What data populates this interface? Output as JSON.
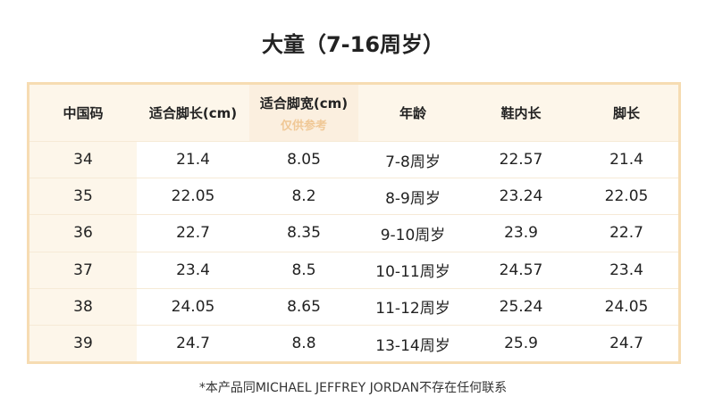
{
  "title": "大童（7-16周岁）",
  "table": {
    "header": [
      "中国码",
      "适合脚长(cm)",
      "适合脚宽(cm)",
      "年龄",
      "鞋内长",
      "脚长"
    ],
    "header_note": "仅供参考",
    "rows": [
      [
        "34",
        "21.4",
        "8.05",
        "7-8周岁",
        "22.57",
        "21.4"
      ],
      [
        "35",
        "22.05",
        "8.2",
        "8-9周岁",
        "23.24",
        "22.05"
      ],
      [
        "36",
        "22.7",
        "8.35",
        "9-10周岁",
        "23.9",
        "22.7"
      ],
      [
        "37",
        "23.4",
        "8.5",
        "10-11周岁",
        "24.57",
        "23.4"
      ],
      [
        "38",
        "24.05",
        "8.65",
        "11-12周岁",
        "25.24",
        "24.05"
      ],
      [
        "39",
        "24.7",
        "8.8",
        "13-14周岁",
        "25.9",
        "24.7"
      ]
    ]
  },
  "footer": "*本产品同MICHAEL JEFFREY JORDAN不存在任何联系"
}
